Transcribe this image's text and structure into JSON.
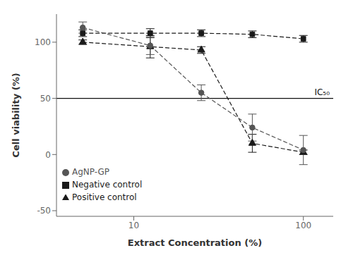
{
  "chart_data": {
    "type": "line",
    "x": [
      5,
      12.5,
      25,
      50,
      100
    ],
    "series": [
      {
        "name": "Negative control",
        "color": "#1a1a1a",
        "marker": "square",
        "line_style": "dashed",
        "values": [
          108,
          108,
          108,
          107,
          103
        ],
        "error": [
          3,
          4,
          3,
          3,
          3
        ]
      },
      {
        "name": "Positive control",
        "color": "#1a1a1a",
        "marker": "triangle",
        "line_style": "dashed",
        "values": [
          100,
          96,
          93,
          10,
          2
        ],
        "error": [
          2,
          10,
          3,
          8,
          2
        ]
      },
      {
        "name": "AgNP-GP",
        "color": "#555555",
        "marker": "circle",
        "line_style": "dashed",
        "values": [
          113,
          97,
          55,
          24,
          4
        ],
        "error": [
          5,
          8,
          7,
          12,
          13
        ]
      }
    ],
    "xlabel": "Extract Concentration (%)",
    "ylabel": "Cell viability (%)",
    "xlim": [
      3.5,
      150
    ],
    "ylim": [
      -55,
      125
    ],
    "xticks": [
      10,
      100
    ],
    "yticks": [
      -50,
      0,
      50,
      100
    ],
    "log": "x",
    "grid": false,
    "legend": "lower left",
    "annotations": [
      {
        "text": "IC₅₀",
        "y": 50,
        "color": "#111111"
      }
    ]
  }
}
